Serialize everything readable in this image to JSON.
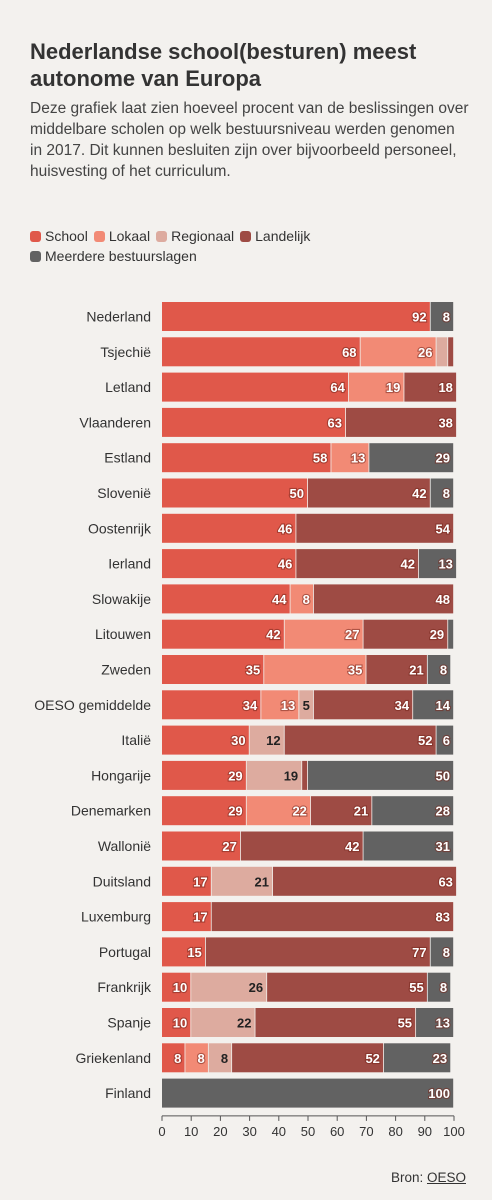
{
  "title": "Nederlandse school(besturen) meest autonome van Europa",
  "subtitle": "Deze grafiek laat zien hoeveel procent van de beslissingen over middelbare scholen op welk bestuursniveau werden genomen in 2017. Dit kunnen besluiten zijn over bijvoorbeeld personeel, huisvesting of het curriculum.",
  "source": {
    "label": "Bron:",
    "link": "OESO"
  },
  "chart_data": {
    "type": "bar",
    "orientation": "horizontal",
    "stacked": true,
    "xlim": [
      0,
      100
    ],
    "xticks": [
      "0",
      "10",
      "20",
      "30",
      "40",
      "50",
      "60",
      "70",
      "80",
      "90",
      "100"
    ],
    "legend_position": "top-left",
    "grid": false,
    "categories": [
      "Nederland",
      "Tsjechië",
      "Letland",
      "Vlaanderen",
      "Estland",
      "Slovenië",
      "Oostenrijk",
      "Ierland",
      "Slowakije",
      "Litouwen",
      "Zweden",
      "OESO gemiddelde",
      "Italië",
      "Hongarije",
      "Denemarken",
      "Wallonië",
      "Duitsland",
      "Luxemburg",
      "Portugal",
      "Frankrijk",
      "Spanje",
      "Griekenland",
      "Finland"
    ],
    "series": [
      {
        "name": "School",
        "color": "#e0584a",
        "values": [
          92,
          68,
          64,
          63,
          58,
          50,
          46,
          46,
          44,
          42,
          35,
          34,
          30,
          29,
          29,
          27,
          17,
          17,
          15,
          10,
          10,
          8,
          0
        ]
      },
      {
        "name": "Lokaal",
        "color": "#f28a75",
        "values": [
          0,
          26,
          19,
          0,
          13,
          0,
          0,
          0,
          8,
          27,
          35,
          13,
          0,
          0,
          22,
          0,
          0,
          0,
          0,
          0,
          0,
          8,
          0
        ]
      },
      {
        "name": "Regionaal",
        "color": "#ddab9f",
        "values": [
          0,
          4,
          0,
          0,
          0,
          0,
          0,
          0,
          0,
          0,
          0,
          5,
          12,
          19,
          0,
          0,
          21,
          0,
          0,
          26,
          22,
          8,
          0
        ]
      },
      {
        "name": "Landelijk",
        "color": "#9e4b44",
        "values": [
          0,
          2,
          18,
          38,
          0,
          42,
          54,
          42,
          48,
          29,
          21,
          34,
          52,
          2,
          21,
          42,
          63,
          83,
          77,
          55,
          55,
          52,
          0
        ]
      },
      {
        "name": "Meerdere bestuurslagen",
        "color": "#626262",
        "values": [
          8,
          0,
          0,
          0,
          29,
          8,
          0,
          13,
          0,
          2,
          8,
          14,
          6,
          50,
          28,
          31,
          0,
          0,
          8,
          8,
          13,
          23,
          100
        ]
      }
    ],
    "data_labels": [
      [
        "92",
        "",
        "",
        "",
        "8"
      ],
      [
        "68",
        "26",
        "",
        "",
        ""
      ],
      [
        "64",
        "19",
        "",
        "18",
        ""
      ],
      [
        "63",
        "",
        "",
        "38",
        ""
      ],
      [
        "58",
        "13",
        "",
        "",
        "29"
      ],
      [
        "50",
        "",
        "",
        "42",
        "8"
      ],
      [
        "46",
        "",
        "",
        "54",
        ""
      ],
      [
        "46",
        "",
        "",
        "42",
        "13"
      ],
      [
        "44",
        "8",
        "",
        "48",
        ""
      ],
      [
        "42",
        "27",
        "",
        "29",
        ""
      ],
      [
        "35",
        "35",
        "",
        "21",
        "8"
      ],
      [
        "34",
        "13",
        "5",
        "34",
        "14"
      ],
      [
        "30",
        "",
        "12",
        "52",
        "6"
      ],
      [
        "29",
        "",
        "19",
        "",
        "50"
      ],
      [
        "29",
        "22",
        "",
        "21",
        "28"
      ],
      [
        "27",
        "",
        "",
        "42",
        "31"
      ],
      [
        "17",
        "",
        "21",
        "63",
        ""
      ],
      [
        "17",
        "",
        "",
        "83",
        ""
      ],
      [
        "15",
        "",
        "",
        "77",
        "8"
      ],
      [
        "10",
        "",
        "26",
        "55",
        "8"
      ],
      [
        "10",
        "",
        "22",
        "55",
        "13"
      ],
      [
        "8",
        "8",
        "8",
        "52",
        "23"
      ],
      [
        "",
        "",
        "",
        "",
        "100"
      ]
    ]
  }
}
